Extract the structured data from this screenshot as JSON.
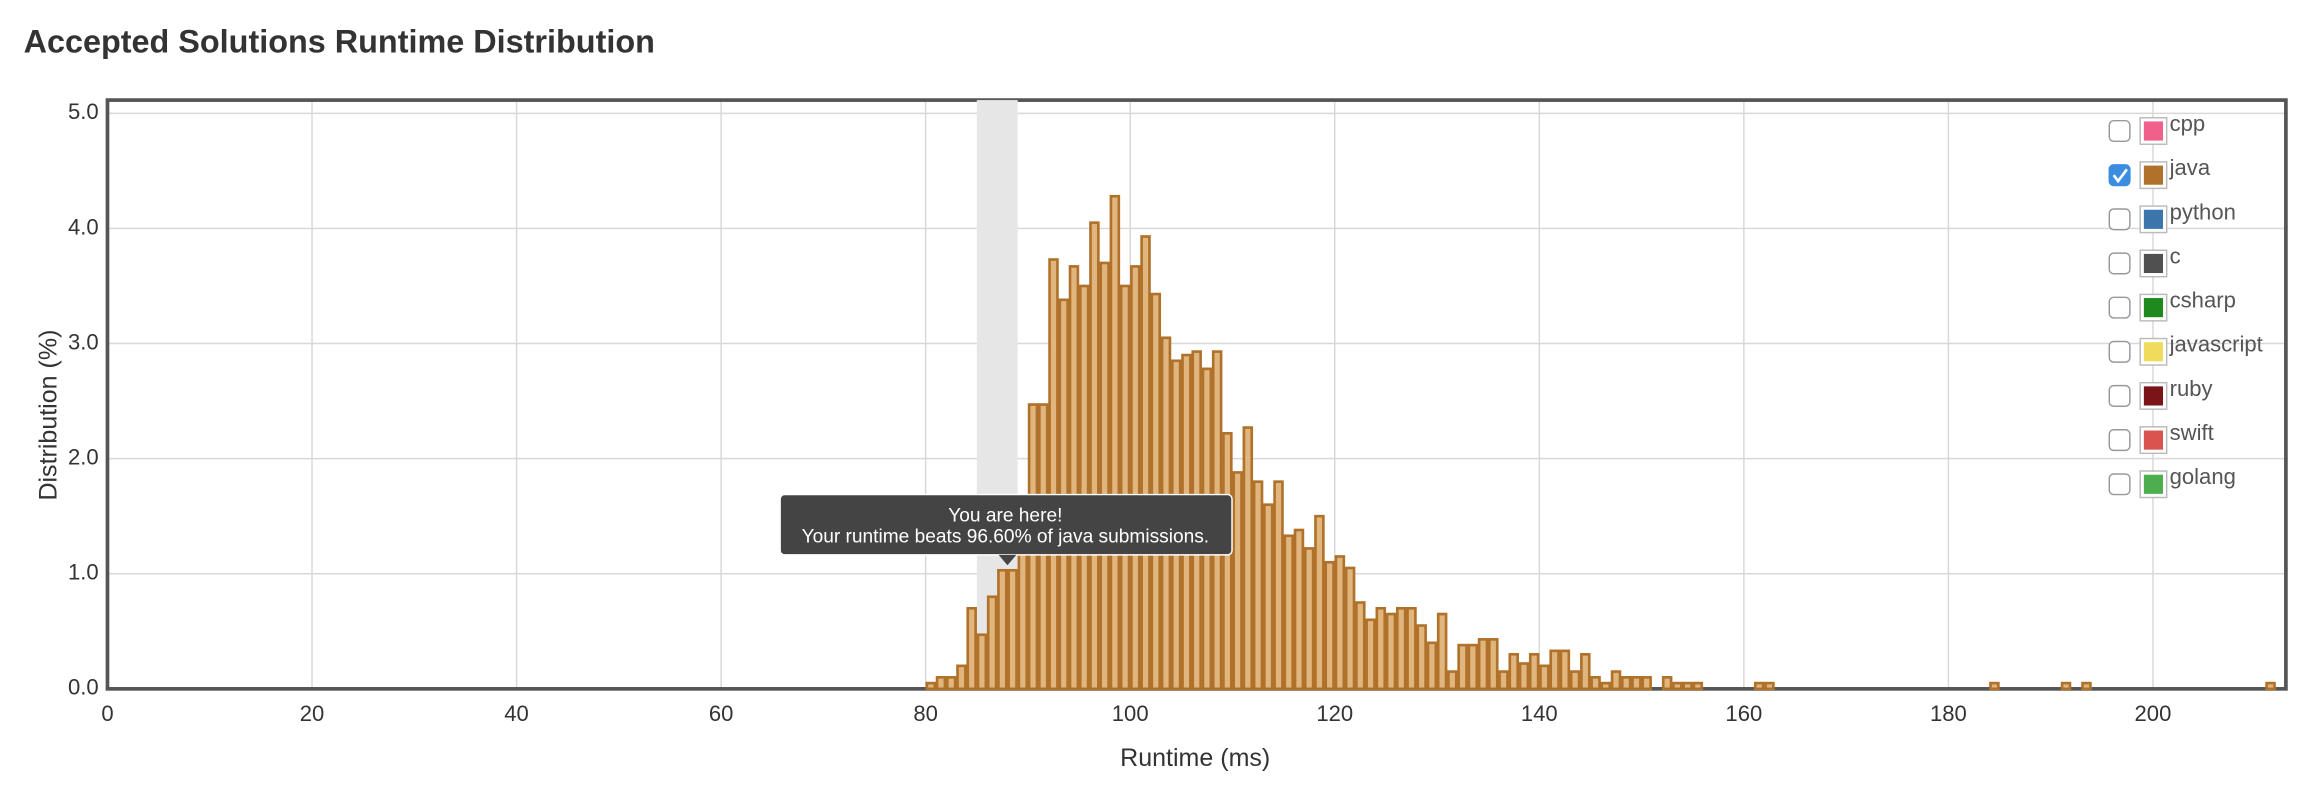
{
  "chart_data": {
    "type": "histogram",
    "title": "Accepted Solutions Runtime Distribution",
    "xlabel": "Runtime (ms)",
    "ylabel": "Distribution (%)",
    "bins": [
      80,
      81,
      82,
      83,
      84,
      85,
      86,
      87,
      88,
      89,
      90,
      91,
      92,
      93,
      94,
      95,
      96,
      97,
      98,
      99,
      100,
      101,
      102,
      103,
      104,
      105,
      106,
      107,
      108,
      109,
      110,
      111,
      112,
      113,
      114,
      115,
      116,
      117,
      118,
      119,
      120,
      121,
      122,
      123,
      124,
      125,
      126,
      127,
      128,
      129,
      130,
      131,
      132,
      133,
      134,
      135,
      136,
      137,
      138,
      139,
      140,
      141,
      142,
      143,
      144,
      145,
      146,
      147,
      148,
      149,
      150,
      151,
      152,
      153,
      154,
      155,
      156,
      157,
      158,
      159,
      160,
      161,
      162,
      163,
      164,
      165,
      166,
      167,
      168,
      169,
      170,
      171,
      172,
      173,
      174,
      175,
      176,
      177,
      178,
      179,
      180,
      181,
      182,
      183,
      184,
      185,
      186,
      187,
      188,
      189,
      190,
      191,
      192,
      193,
      194,
      195,
      196,
      197,
      198,
      199,
      200,
      201,
      202,
      203,
      204,
      205,
      206,
      207,
      208,
      209,
      210,
      211,
      212,
      213
    ],
    "values": [
      0.05,
      0.1,
      0.1,
      0.2,
      0.7,
      0.47,
      0.8,
      1.03,
      1.03,
      1.25,
      2.47,
      2.47,
      3.73,
      3.38,
      3.67,
      3.5,
      4.05,
      3.7,
      4.28,
      3.5,
      3.67,
      3.93,
      3.43,
      3.05,
      2.85,
      2.9,
      2.93,
      2.78,
      2.93,
      2.22,
      1.88,
      2.27,
      1.8,
      1.6,
      1.8,
      1.33,
      1.38,
      1.22,
      1.5,
      1.1,
      1.15,
      1.05,
      0.75,
      0.6,
      0.7,
      0.65,
      0.7,
      0.7,
      0.55,
      0.4,
      0.65,
      0.15,
      0.38,
      0.38,
      0.43,
      0.43,
      0.15,
      0.3,
      0.22,
      0.3,
      0.2,
      0.33,
      0.33,
      0.15,
      0.3,
      0.1,
      0.05,
      0.15,
      0.1,
      0.1,
      0.1,
      0,
      0.1,
      0.05,
      0.05,
      0.05,
      0,
      0,
      0,
      0,
      0,
      0.05,
      0.05,
      0,
      0,
      0,
      0,
      0,
      0,
      0,
      0,
      0,
      0,
      0,
      0,
      0,
      0,
      0,
      0,
      0,
      0,
      0,
      0,
      0,
      0.05,
      0,
      0,
      0,
      0,
      0,
      0,
      0.05,
      0,
      0.05,
      0,
      0,
      0,
      0,
      0,
      0,
      0,
      0,
      0,
      0,
      0,
      0,
      0,
      0,
      0,
      0,
      0,
      0.05,
      0
    ],
    "color": "#b0722a",
    "highlight_range": [
      85,
      89
    ],
    "annotation": {
      "title": "You are here!",
      "text": "Your runtime beats 96.60% of java submissions."
    },
    "xlim": [
      0,
      213
    ],
    "ylim": [
      0,
      5
    ],
    "xticks": [
      0,
      20,
      40,
      60,
      80,
      100,
      120,
      140,
      160,
      180,
      200
    ],
    "yticks": [
      {
        "value": 0,
        "label": "0.0"
      },
      {
        "value": 1,
        "label": "1.0"
      },
      {
        "value": 2,
        "label": "2.0"
      },
      {
        "value": 3,
        "label": "3.0"
      },
      {
        "value": 4,
        "label": "4.0"
      },
      {
        "value": 5,
        "label": "5.0"
      }
    ],
    "grid": true,
    "legend": [
      {
        "name": "cpp",
        "color": "#f0608a",
        "checked": false
      },
      {
        "name": "java",
        "color": "#b0722a",
        "checked": true
      },
      {
        "name": "python",
        "color": "#3b75ac",
        "checked": false
      },
      {
        "name": "c",
        "color": "#505050",
        "checked": false
      },
      {
        "name": "csharp",
        "color": "#1e8a1e",
        "checked": false
      },
      {
        "name": "javascript",
        "color": "#f0dc5a",
        "checked": false
      },
      {
        "name": "ruby",
        "color": "#7a1418",
        "checked": false
      },
      {
        "name": "swift",
        "color": "#d9534f",
        "checked": false
      },
      {
        "name": "golang",
        "color": "#4cae4c",
        "checked": false
      }
    ]
  }
}
